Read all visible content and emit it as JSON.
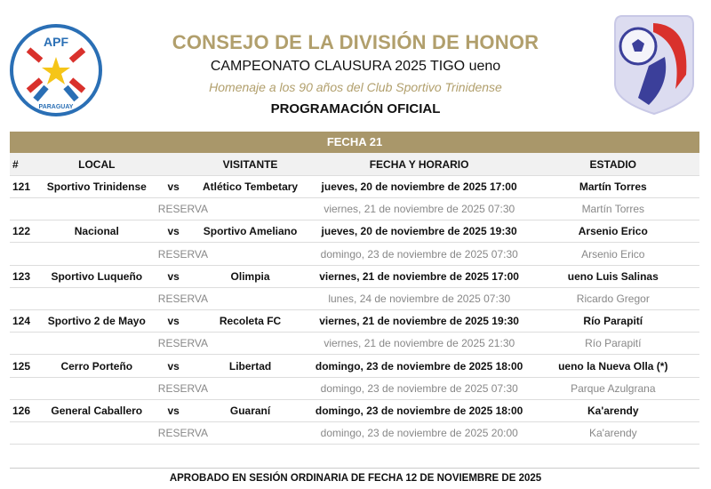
{
  "header": {
    "title": "CONSEJO DE LA DIVISIÓN DE HONOR",
    "subtitle": "CAMPEONATO CLAUSURA 2025 TIGO ueno",
    "tribute": "Homenaje a los 90 años del Club Sportivo Trinidense",
    "section": "PROGRAMACIÓN OFICIAL",
    "left_logo": {
      "top": "APF",
      "bottom": "PARAGUAY"
    },
    "accent_color": "#a9976a"
  },
  "table": {
    "band": "FECHA 21",
    "columns": [
      "#",
      "LOCAL",
      "VISITANTE",
      "FECHA Y HORARIO",
      "ESTADIO"
    ],
    "matches": [
      {
        "num": "121",
        "local": "Sportivo Trinidense",
        "vs": "vs",
        "visitante": "Atlético Tembetary",
        "fecha": "jueves, 20 de noviembre de 2025 17:00",
        "estadio": "Martín Torres",
        "reserva": "RESERVA",
        "reserva_fecha": "viernes, 21 de noviembre de 2025 07:30",
        "reserva_estadio": "Martín Torres"
      },
      {
        "num": "122",
        "local": "Nacional",
        "vs": "vs",
        "visitante": "Sportivo Ameliano",
        "fecha": "jueves, 20 de noviembre de 2025 19:30",
        "estadio": "Arsenio Erico",
        "reserva": "RESERVA",
        "reserva_fecha": "domingo, 23 de noviembre de 2025 07:30",
        "reserva_estadio": "Arsenio Erico"
      },
      {
        "num": "123",
        "local": "Sportivo Luqueño",
        "vs": "vs",
        "visitante": "Olimpia",
        "fecha": "viernes, 21 de noviembre de 2025 17:00",
        "estadio": "ueno Luis Salinas",
        "reserva": "RESERVA",
        "reserva_fecha": "lunes, 24 de noviembre de 2025 07:30",
        "reserva_estadio": "Ricardo Gregor"
      },
      {
        "num": "124",
        "local": "Sportivo 2 de Mayo",
        "vs": "vs",
        "visitante": "Recoleta FC",
        "fecha": "viernes, 21 de noviembre de 2025 19:30",
        "estadio": "Río Parapití",
        "reserva": "RESERVA",
        "reserva_fecha": "viernes, 21 de noviembre de 2025 21:30",
        "reserva_estadio": "Río Parapití"
      },
      {
        "num": "125",
        "local": "Cerro Porteño",
        "vs": "vs",
        "visitante": "Libertad",
        "fecha": "domingo, 23 de noviembre de 2025 18:00",
        "estadio": "ueno la Nueva Olla (*)",
        "reserva": "RESERVA",
        "reserva_fecha": "domingo, 23 de noviembre de 2025 07:30",
        "reserva_estadio": "Parque Azulgrana"
      },
      {
        "num": "126",
        "local": "General Caballero",
        "vs": "vs",
        "visitante": "Guaraní",
        "fecha": "domingo, 23 de noviembre de 2025 18:00",
        "estadio": "Ka'arendy",
        "reserva": "RESERVA",
        "reserva_fecha": "domingo, 23 de noviembre de 2025 20:00",
        "reserva_estadio": "Ka'arendy"
      }
    ]
  },
  "footer": "APROBADO EN SESIÓN ORDINARIA DE FECHA 12 DE NOVIEMBRE DE 2025"
}
